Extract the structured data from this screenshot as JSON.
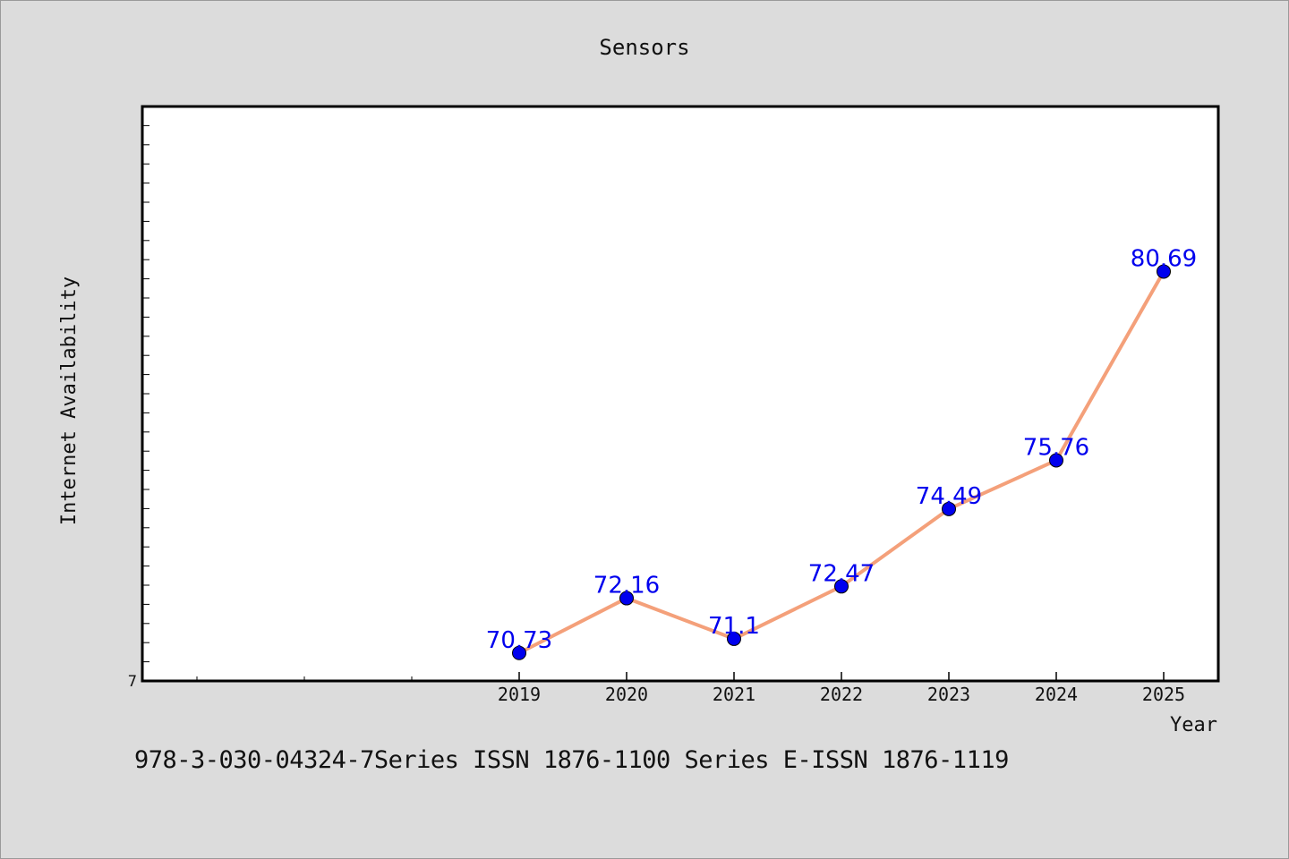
{
  "chart_data": {
    "type": "line",
    "title": "Sensors",
    "xlabel": "Year",
    "ylabel": "Internet Availability",
    "x_ticks_major": [
      "2019",
      "2020",
      "2021",
      "2022",
      "2023",
      "2024",
      "2025"
    ],
    "x": [
      "2019",
      "2020",
      "2021",
      "2022",
      "2023",
      "2024",
      "2025"
    ],
    "series": [
      {
        "values": [
          70.73,
          72.16,
          71.1,
          72.47,
          74.49,
          75.76,
          80.69
        ],
        "labels": [
          "70.73",
          "72.16",
          "71.1",
          "72.47",
          "74.49",
          "75.76",
          "80.69"
        ]
      }
    ],
    "ylim": [
      70,
      85
    ],
    "y_tick_labels": [
      "7"
    ],
    "grid": false,
    "legend": "none",
    "colors": {
      "line": "#f4a07a",
      "marker": "#0000ee",
      "data_label": "#0000ee",
      "plot_bg": "#ffffff",
      "page_bg": "#dcdcdc"
    }
  },
  "footer": {
    "caption": "978-3-030-04324-7Series ISSN 1876-1100 Series E-ISSN 1876-1119"
  }
}
